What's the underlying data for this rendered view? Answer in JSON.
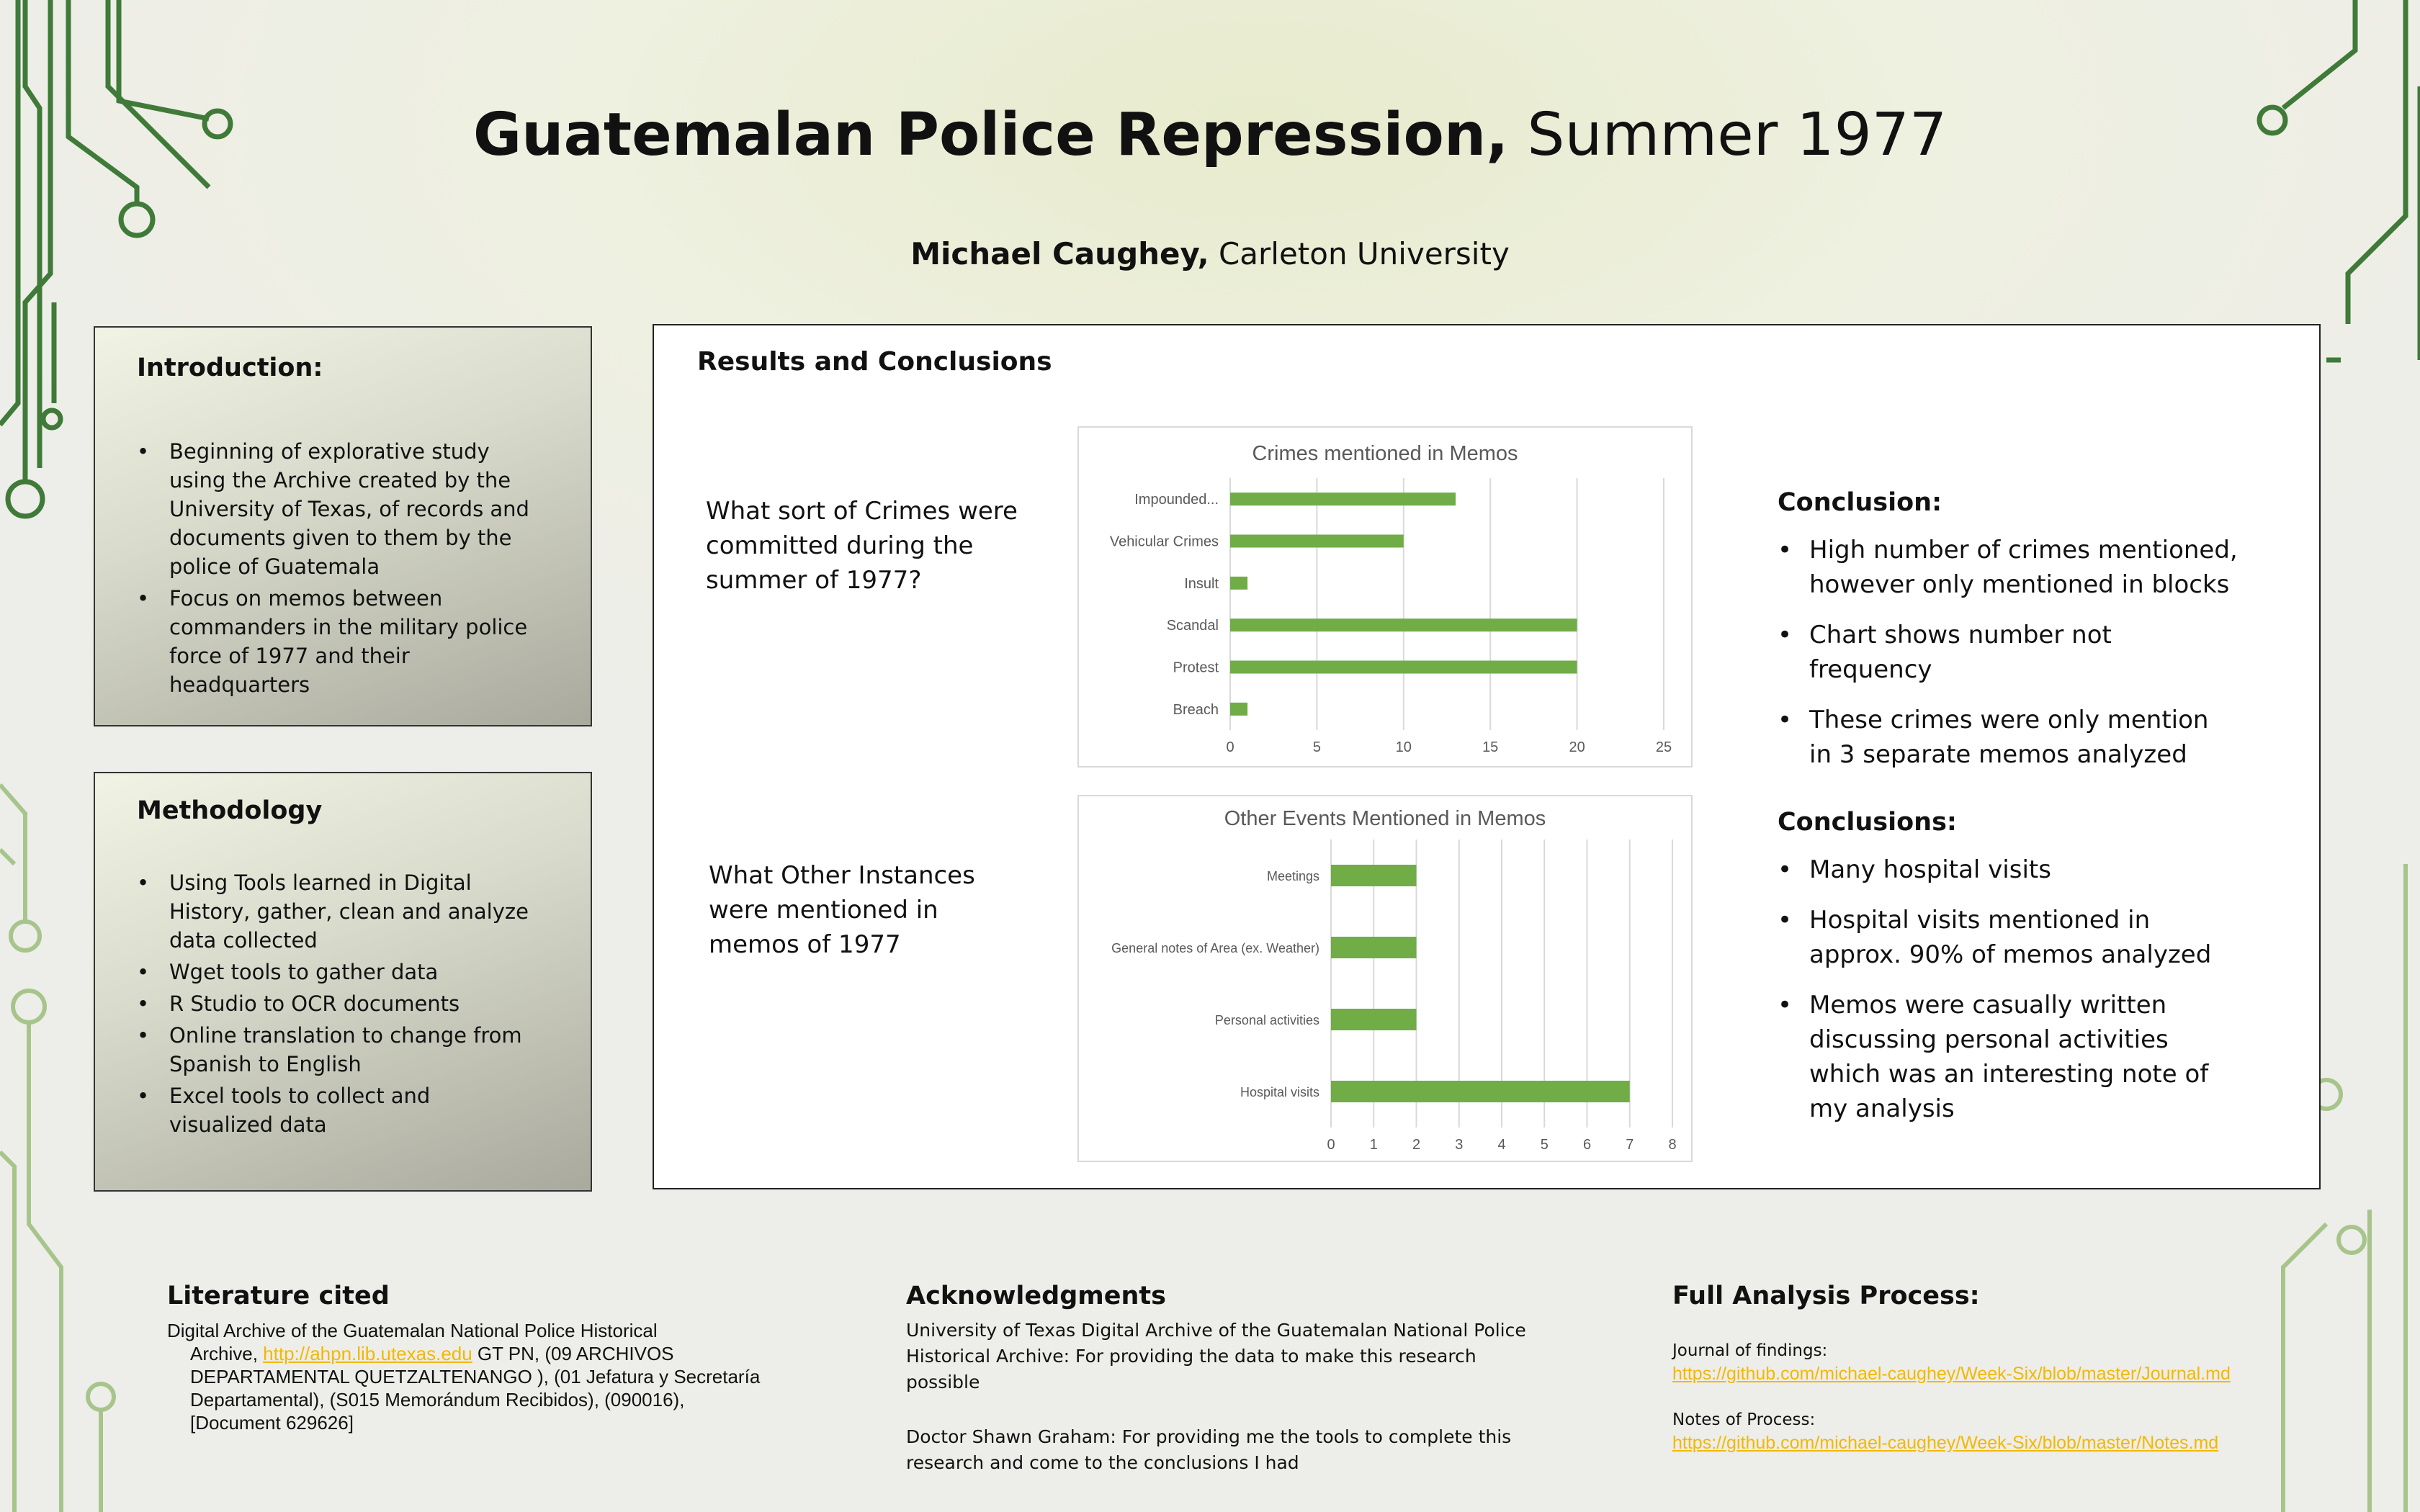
{
  "title": {
    "bold": "Guatemalan Police Repression,",
    "rest": " Summer 1977"
  },
  "author": {
    "name": "Michael Caughey,",
    "affiliation": " Carleton University"
  },
  "introduction": {
    "heading": "Introduction:",
    "items": [
      "Beginning of explorative study using the Archive created by the University of Texas, of records and documents given to them by the police of Guatemala",
      "Focus on memos between commanders in the military police force of 1977 and their headquarters"
    ]
  },
  "methodology": {
    "heading": "Methodology",
    "items": [
      "Using Tools learned in Digital History, gather, clean and analyze data collected",
      "Wget tools to gather data",
      "R Studio to OCR documents",
      "Online translation to change from Spanish to English",
      "Excel tools to collect and visualized data"
    ]
  },
  "results": {
    "heading": "Results and Conclusions",
    "question1": "What sort of Crimes were committed during the summer of 1977?",
    "question2": "What Other Instances were mentioned in memos of 1977",
    "conclusion1": {
      "heading": "Conclusion:",
      "items": [
        "High number of crimes mentioned, however only mentioned in blocks",
        "Chart shows number not frequency",
        "These crimes were only mention in 3 separate memos analyzed"
      ]
    },
    "conclusion2": {
      "heading": "Conclusions:",
      "items": [
        "Many hospital visits",
        "Hospital visits mentioned in approx. 90% of memos analyzed",
        "Memos were casually written discussing personal activities which was an interesting note of my analysis"
      ]
    }
  },
  "chart_data": [
    {
      "type": "bar",
      "orientation": "horizontal",
      "title": "Crimes mentioned in Memos",
      "categories": [
        "Impounded...",
        "Vehicular Crimes",
        "Insult",
        "Scandal",
        "Protest",
        "Breach"
      ],
      "values": [
        13,
        10,
        1,
        20,
        20,
        1
      ],
      "xlim": [
        0,
        25
      ],
      "ticks": [
        "0",
        "5",
        "10",
        "15",
        "20",
        "25"
      ],
      "grid": true,
      "color": "#70ad47"
    },
    {
      "type": "bar",
      "orientation": "horizontal",
      "title": "Other Events Mentioned in Memos",
      "categories": [
        "Meetings",
        "General notes of Area (ex. Weather)",
        "Personal activities",
        "Hospital visits"
      ],
      "values": [
        2,
        2,
        2,
        7
      ],
      "xlim": [
        0,
        8
      ],
      "ticks": [
        "0",
        "1",
        "2",
        "3",
        "4",
        "5",
        "6",
        "7",
        "8"
      ],
      "grid": true,
      "color": "#70ad47"
    }
  ],
  "literature": {
    "heading": "Literature cited",
    "line1": "Digital Archive of the Guatemalan National Police Historical",
    "line2_pre": "Archive, ",
    "link": "http://ahpn.lib.utexas.edu",
    "line2_post": "  GT PN, (09 ARCHIVOS",
    "line3": "DEPARTAMENTAL QUETZALTENANGO ), (01 Jefatura y Secretaría",
    "line4": "Departamental), (S015 Memorándum Recibidos), (090016),",
    "line5": "[Document 629626]"
  },
  "acknowledgments": {
    "heading": "Acknowledgments",
    "para1": "University of Texas Digital Archive of the Guatemalan National Police Historical Archive: For providing the data to make this research possible",
    "para2": "Doctor Shawn Graham: For providing me the tools to complete this research and come to the conclusions I had"
  },
  "analysis": {
    "heading": "Full Analysis Process:",
    "journal_label": "Journal of findings:",
    "journal_link": "https://github.com/michael-caughey/Week-Six/blob/master/Journal.md",
    "notes_label": "Notes of Process:",
    "notes_link": "https://github.com/michael-caughey/Week-Six/blob/master/Notes.md"
  },
  "colors": {
    "circuit_dark": "#3a6b35",
    "circuit_light": "#a9c98a",
    "bar": "#70ad47"
  }
}
